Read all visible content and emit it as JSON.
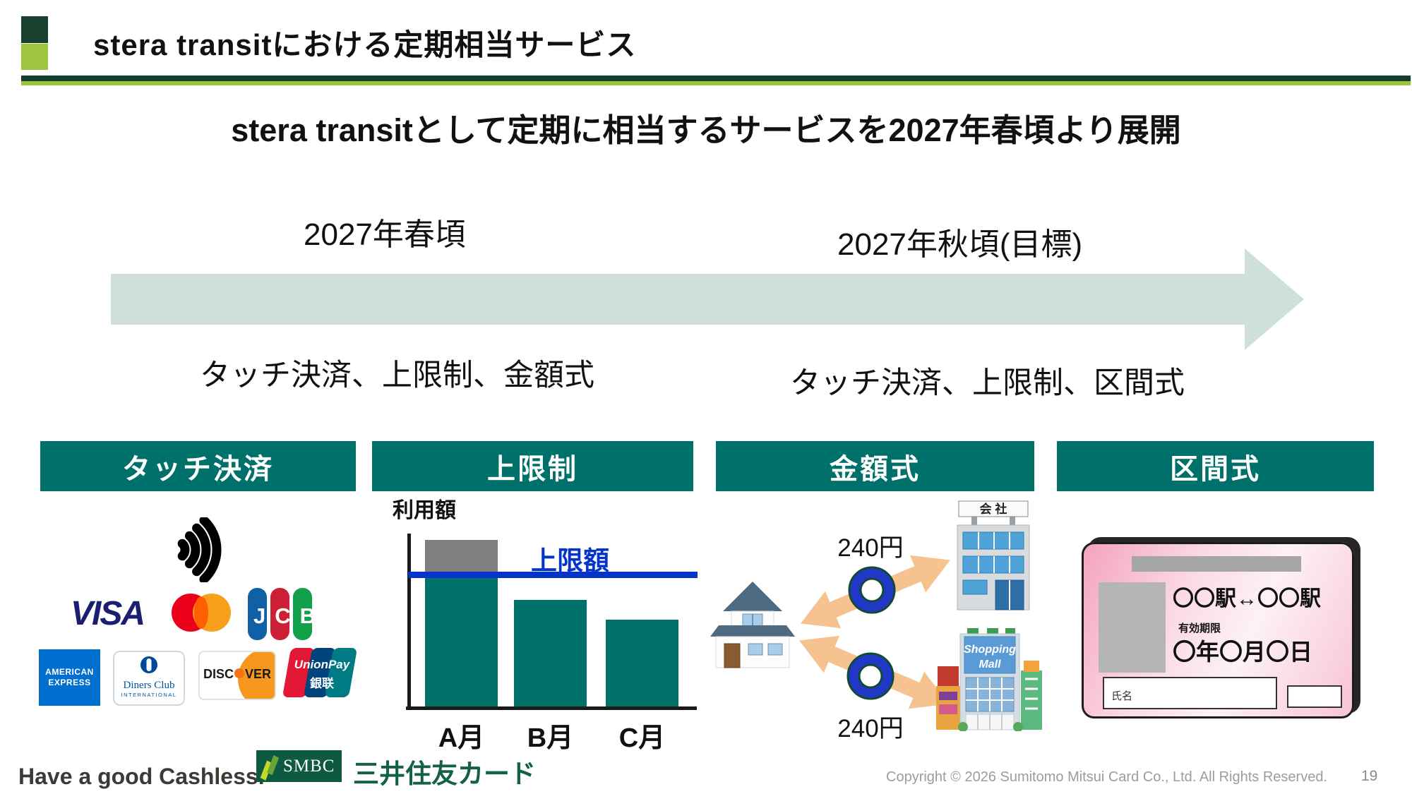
{
  "header": {
    "title": "stera transitにおける定期相当サービス",
    "subtitle": "stera transitとして定期に相当するサービスを2027年春頃より展開"
  },
  "timeline": {
    "phase1": {
      "date": "2027年春頃",
      "features": "タッチ決済、上限制、金額式"
    },
    "phase2": {
      "date": "2027年秋頃(目標)",
      "features": "タッチ決済、上限制、区間式"
    }
  },
  "panels": {
    "touch": {
      "title": "タッチ決済"
    },
    "cap": {
      "title": "上限制"
    },
    "amount": {
      "title": "金額式",
      "fare_top": "240円",
      "fare_bottom": "240円",
      "company_sign": "会 社",
      "mall_sign_line1": "Shopping",
      "mall_sign_line2": "Mall"
    },
    "section": {
      "title": "区間式",
      "pass": {
        "route": "〇〇駅↔〇〇駅",
        "validity_label": "有効期限",
        "validity_value": "〇年〇月〇日",
        "name_label": "氏名"
      }
    }
  },
  "brands": {
    "visa": "VISA",
    "jcb": "JCB",
    "amex_line1": "AMERICAN",
    "amex_line2": "EXPRESS",
    "diners_line1": "Diners Club",
    "diners_line2": "INTERNATIONAL",
    "discover_part1": "DISC",
    "discover_part2": "VER",
    "unionpay_line1": "UnionPay",
    "unionpay_line2": "銀联"
  },
  "chart_data": {
    "type": "bar",
    "title": "利用額",
    "categories": [
      "A月",
      "B月",
      "C月"
    ],
    "values": [
      126,
      81,
      66
    ],
    "ylim": [
      0,
      130
    ],
    "cap_line": {
      "label": "上限額",
      "value": 100
    },
    "legend": "none",
    "note": "Relative usage amounts; A月 exceeds the cap line and the excess is shown in gray",
    "colors": {
      "bar": "#00716a",
      "excess": "#7f7f7f",
      "cap": "#0434cb"
    }
  },
  "footer": {
    "tagline": "Have a good Cashless.",
    "smbc_label": "SMBC",
    "company": "三井住友カード",
    "copyright": "Copyright © 2026 Sumitomo Mitsui Card Co., Ltd. All Rights Reserved.",
    "page_number": "19"
  },
  "colors": {
    "accent_teal": "#00716a",
    "brand_dark_green": "#123f2d",
    "brand_light_green": "#9dc53e",
    "cap_blue": "#0434cb",
    "timeline_arrow": "#cfe0dc",
    "fare_arrow_orange": "#f6c28f",
    "donut_blue": "#2138c7"
  }
}
